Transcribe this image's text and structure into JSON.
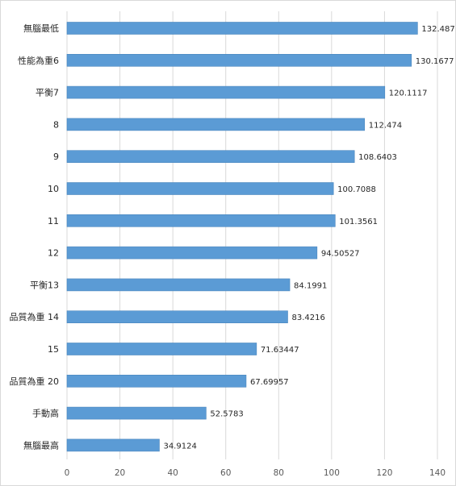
{
  "chart_data": {
    "type": "bar",
    "orientation": "horizontal",
    "title": "",
    "xlabel": "",
    "ylabel": "",
    "categories": [
      "無腦最低",
      "性能為重6",
      "平衡7",
      "8",
      "9",
      "10",
      "11",
      "12",
      "平衡13",
      "品質為重 14",
      "15",
      "品質為重 20",
      "手動高",
      "無腦最高"
    ],
    "values": [
      132.487,
      130.1677,
      120.1117,
      112.474,
      108.6403,
      100.7088,
      101.3561,
      94.50527,
      84.1991,
      83.4216,
      71.63447,
      67.69957,
      52.5783,
      34.9124
    ],
    "value_labels": [
      "132.487",
      "130.1677",
      "120.1117",
      "112.474",
      "108.6403",
      "100.7088",
      "101.3561",
      "94.50527",
      "84.1991",
      "83.4216",
      "71.63447",
      "67.69957",
      "52.5783",
      "34.9124"
    ],
    "xlim": [
      0,
      140
    ],
    "xticks": [
      "0",
      "20",
      "40",
      "60",
      "80",
      "100",
      "120",
      "140"
    ],
    "grid": "vertical",
    "legend": "none",
    "bar_color": "#5b9bd5",
    "bar_edge_color": "#4a86bd"
  }
}
